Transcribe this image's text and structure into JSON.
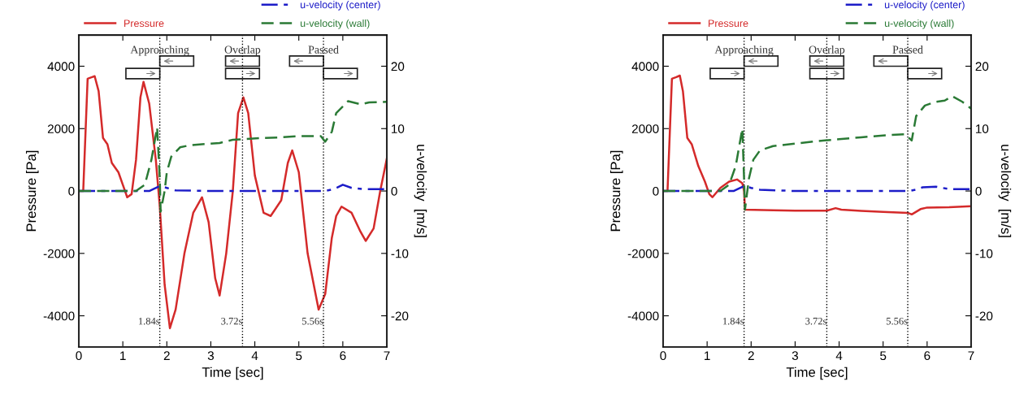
{
  "chart_data": [
    {
      "type": "line",
      "xlabel": "Time [sec]",
      "ylabel": "Pressure [Pa]",
      "y2label": "u-velocity  [m/s]",
      "xlim": [
        0,
        7
      ],
      "xticks": [
        0,
        1,
        2,
        3,
        4,
        5,
        6,
        7
      ],
      "ylim": [
        -5000,
        5000
      ],
      "yticks": [
        -4000,
        -2000,
        0,
        2000,
        4000
      ],
      "y2lim": [
        -25,
        25
      ],
      "y2ticks": [
        -20,
        -10,
        0,
        10,
        20
      ],
      "grid": false,
      "legend": "top",
      "series": [
        {
          "name": "Pressure",
          "color": "#d42a2a",
          "line_style": "solid",
          "axis": "y",
          "x": [
            0,
            0.1,
            0.2,
            0.3,
            0.36,
            0.45,
            0.55,
            0.65,
            0.75,
            0.9,
            1.0,
            1.1,
            1.2,
            1.3,
            1.4,
            1.47,
            1.6,
            1.75,
            1.84,
            1.95,
            2.07,
            2.2,
            2.4,
            2.6,
            2.8,
            2.95,
            3.1,
            3.2,
            3.35,
            3.5,
            3.62,
            3.74,
            3.85,
            4.0,
            4.2,
            4.36,
            4.6,
            4.75,
            4.85,
            5.0,
            5.2,
            5.45,
            5.6,
            5.75,
            5.85,
            5.97,
            6.2,
            6.4,
            6.52,
            6.7,
            6.85,
            7.0
          ],
          "values": [
            0,
            0,
            3600,
            3650,
            3680,
            3200,
            1700,
            1500,
            900,
            600,
            200,
            -200,
            -100,
            1000,
            3000,
            3500,
            2800,
            1000,
            -500,
            -3000,
            -4400,
            -3800,
            -2000,
            -700,
            -200,
            -1000,
            -2800,
            -3350,
            -2000,
            0,
            2500,
            3000,
            2500,
            500,
            -700,
            -800,
            -300,
            900,
            1300,
            600,
            -2000,
            -3800,
            -3300,
            -1500,
            -800,
            -500,
            -700,
            -1300,
            -1600,
            -1200,
            0,
            1040
          ]
        },
        {
          "name": "u-velocity (center)",
          "color": "#1c1cc8",
          "line_style": "dashed",
          "axis": "y2",
          "x": [
            0,
            1.0,
            1.6,
            1.84,
            2.0,
            2.2,
            3.0,
            4.0,
            5.0,
            5.6,
            5.8,
            6.0,
            6.2,
            6.5,
            7.0
          ],
          "values": [
            0,
            0,
            0,
            0.8,
            0.5,
            0.1,
            0,
            0,
            0,
            0,
            0.3,
            1.0,
            0.5,
            0.3,
            0.3
          ]
        },
        {
          "name": "u-velocity (wall)",
          "color": "#2a7a35",
          "line_style": "dashed",
          "axis": "y2",
          "x": [
            0,
            1.3,
            1.5,
            1.65,
            1.78,
            1.84,
            1.86,
            1.95,
            2.0,
            2.1,
            2.3,
            2.5,
            2.8,
            3.2,
            3.5,
            3.72,
            4.2,
            4.6,
            5.0,
            5.5,
            5.6,
            5.75,
            5.85,
            6.12,
            6.4,
            6.6,
            7.0
          ],
          "values": [
            0,
            0,
            1.0,
            5,
            10.2,
            2,
            -3.3,
            0,
            3,
            5.5,
            7,
            7.3,
            7.5,
            7.7,
            8.2,
            8.3,
            8.5,
            8.6,
            8.8,
            8.8,
            7.9,
            9.5,
            12.5,
            14.4,
            13.9,
            14.2,
            14.3
          ]
        }
      ],
      "ref_lines": [
        {
          "axis": "x",
          "value": 1.84,
          "label": "1.84s",
          "color": "#000000",
          "line_style": "dotted"
        },
        {
          "axis": "x",
          "value": 3.72,
          "label": "3.72s",
          "color": "#000000",
          "line_style": "dotted"
        },
        {
          "axis": "x",
          "value": 5.56,
          "label": "5.56s",
          "color": "#000000",
          "line_style": "dotted"
        }
      ],
      "annotations": [
        {
          "text": "Approaching",
          "x": 1.84,
          "y": 4500
        },
        {
          "text": "Overlap",
          "x": 3.72,
          "y": 4500
        },
        {
          "text": "Passed",
          "x": 5.56,
          "y": 4500
        }
      ]
    },
    {
      "type": "line",
      "xlabel": "Time [sec]",
      "ylabel": "Pressure [Pa]",
      "y2label": "u-velocity  [m/s]",
      "xlim": [
        0,
        7
      ],
      "xticks": [
        0,
        1,
        2,
        3,
        4,
        5,
        6,
        7
      ],
      "ylim": [
        -5000,
        5000
      ],
      "yticks": [
        -4000,
        -2000,
        0,
        2000,
        4000
      ],
      "y2lim": [
        -25,
        25
      ],
      "y2ticks": [
        -20,
        -10,
        0,
        10,
        20
      ],
      "grid": false,
      "legend": "top",
      "series": [
        {
          "name": "Pressure",
          "color": "#d42a2a",
          "line_style": "solid",
          "axis": "y",
          "x": [
            0,
            0.1,
            0.2,
            0.3,
            0.38,
            0.45,
            0.55,
            0.65,
            0.8,
            0.95,
            1.05,
            1.12,
            1.3,
            1.5,
            1.68,
            1.8,
            1.84,
            1.86,
            2.5,
            3.0,
            3.72,
            3.92,
            4.05,
            4.5,
            5.0,
            5.56,
            5.65,
            5.85,
            6.0,
            6.5,
            7.0
          ],
          "values": [
            0,
            0,
            3600,
            3650,
            3700,
            3200,
            1700,
            1500,
            800,
            300,
            -100,
            -200,
            100,
            300,
            370,
            250,
            0,
            -600,
            -620,
            -630,
            -630,
            -550,
            -600,
            -640,
            -670,
            -700,
            -750,
            -580,
            -530,
            -520,
            -490
          ]
        },
        {
          "name": "u-velocity (center)",
          "color": "#1c1cc8",
          "line_style": "dashed",
          "axis": "y2",
          "x": [
            0,
            1.0,
            1.6,
            1.84,
            2.0,
            2.2,
            3.0,
            4.0,
            5.0,
            5.6,
            5.8,
            5.9,
            6.2,
            6.5,
            7.0
          ],
          "values": [
            0,
            0,
            0,
            0.8,
            0.5,
            0.2,
            0,
            0,
            0,
            0,
            0.3,
            0.6,
            0.7,
            0.3,
            0.3
          ]
        },
        {
          "name": "u-velocity (wall)",
          "color": "#2a7a35",
          "line_style": "dashed",
          "axis": "y2",
          "x": [
            0,
            1.3,
            1.5,
            1.65,
            1.8,
            1.84,
            1.86,
            1.95,
            2.05,
            2.2,
            2.5,
            3.0,
            3.5,
            4.0,
            4.5,
            5.0,
            5.5,
            5.65,
            5.75,
            5.95,
            6.2,
            6.4,
            6.57,
            6.8,
            7.0
          ],
          "values": [
            0,
            0,
            1.0,
            4,
            10,
            2,
            -3,
            2,
            5,
            6.5,
            7.2,
            7.6,
            8.0,
            8.3,
            8.6,
            8.9,
            9.1,
            8.1,
            12,
            13.7,
            14.3,
            14.5,
            15.2,
            14.3,
            13.2
          ]
        }
      ],
      "ref_lines": [
        {
          "axis": "x",
          "value": 1.84,
          "label": "1.84s",
          "color": "#000000",
          "line_style": "dotted"
        },
        {
          "axis": "x",
          "value": 3.72,
          "label": "3.72s",
          "color": "#000000",
          "line_style": "dotted"
        },
        {
          "axis": "x",
          "value": 5.56,
          "label": "5.56s",
          "color": "#000000",
          "line_style": "dotted"
        }
      ],
      "annotations": [
        {
          "text": "Approaching",
          "x": 1.84,
          "y": 4500
        },
        {
          "text": "Overlap",
          "x": 3.72,
          "y": 4500
        },
        {
          "text": "Passed",
          "x": 5.56,
          "y": 4500
        }
      ]
    }
  ]
}
